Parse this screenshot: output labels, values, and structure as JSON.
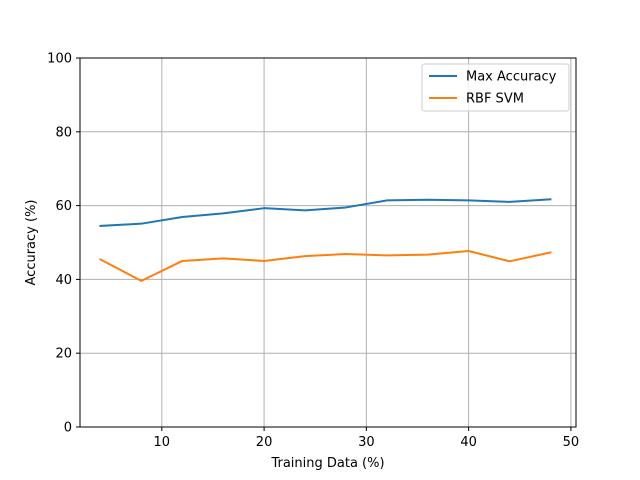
{
  "chart_data": {
    "type": "line",
    "title": "",
    "xlabel": "Training Data (%)",
    "ylabel": "Accuracy (%)",
    "xlim": [
      2,
      50.5
    ],
    "ylim": [
      0,
      100
    ],
    "xticks": [
      10,
      20,
      30,
      40,
      50
    ],
    "yticks": [
      0,
      20,
      40,
      60,
      80,
      100
    ],
    "grid": true,
    "legend_position": "top-right",
    "x": [
      4,
      8,
      12,
      16,
      20,
      24,
      28,
      32,
      36,
      40,
      44,
      48
    ],
    "series": [
      {
        "name": "Max Accuracy",
        "color": "#1f77b4",
        "values": [
          54.5,
          55.1,
          56.9,
          57.9,
          59.3,
          58.7,
          59.5,
          61.4,
          61.6,
          61.4,
          61.0,
          61.7
        ]
      },
      {
        "name": "RBF SVM",
        "color": "#ff7f0e",
        "values": [
          45.4,
          39.6,
          45.0,
          45.7,
          45.0,
          46.3,
          46.9,
          46.5,
          46.7,
          47.7,
          44.9,
          47.3
        ]
      }
    ]
  }
}
